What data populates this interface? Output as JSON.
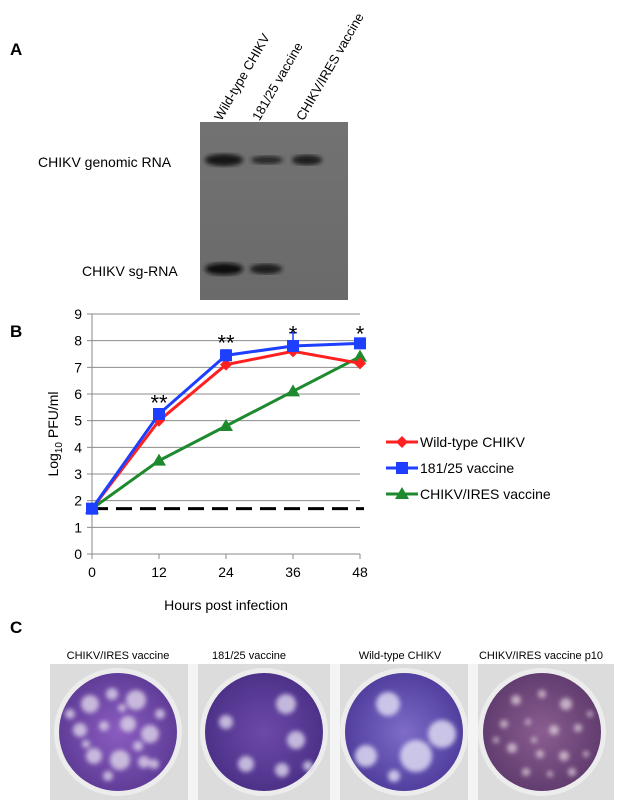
{
  "panels": {
    "a": "A",
    "b": "B",
    "c": "C"
  },
  "gel": {
    "lanes": [
      "Wild-type CHIKV",
      "181/25 vaccine",
      "CHIKV/IRES vaccine"
    ],
    "bands": [
      "CHIKV genomic RNA",
      "CHIKV sg-RNA"
    ]
  },
  "chart_data": {
    "type": "line",
    "xlabel": "Hours post infection",
    "ylabel_prefix": "Log",
    "ylabel_sub": "10",
    "ylabel_suffix": " PFU/ml",
    "xlim": [
      0,
      48
    ],
    "ylim": [
      0,
      9
    ],
    "x_ticks": [
      0,
      12,
      24,
      36,
      48
    ],
    "y_ticks": [
      0,
      1,
      2,
      3,
      4,
      5,
      6,
      7,
      8,
      9
    ],
    "grid": "horizontal",
    "legend_position": "right",
    "detection_limit": 1.7,
    "x": [
      0,
      12,
      24,
      36,
      48
    ],
    "series": [
      {
        "name": "Wild-type CHIKV",
        "values": [
          1.7,
          5.0,
          7.1,
          7.6,
          7.15
        ],
        "color": "#ff2020",
        "marker": "diamond"
      },
      {
        "name": "181/25 vaccine",
        "values": [
          1.7,
          5.25,
          7.45,
          7.8,
          7.9
        ],
        "color": "#1f3fff",
        "marker": "square"
      },
      {
        "name": "CHIKV/IRES vaccine",
        "values": [
          1.7,
          3.5,
          4.8,
          6.1,
          7.4
        ],
        "color": "#1e8a2e",
        "marker": "triangle"
      }
    ],
    "annotations": [
      {
        "x": 12,
        "y": 5.6,
        "text": "**"
      },
      {
        "x": 24,
        "y": 7.85,
        "text": "**"
      },
      {
        "x": 36,
        "y": 8.2,
        "text": "*"
      },
      {
        "x": 48,
        "y": 8.2,
        "text": "*"
      }
    ]
  },
  "plaques": {
    "labels": [
      "CHIKV/IRES vaccine",
      "181/25 vaccine",
      "Wild-type CHIKV",
      "CHIKV/IRES vaccine p10"
    ]
  },
  "colors": {
    "gel_bg": "#6e6e6e",
    "band": "#141414",
    "stain": "#5a3fa0"
  }
}
